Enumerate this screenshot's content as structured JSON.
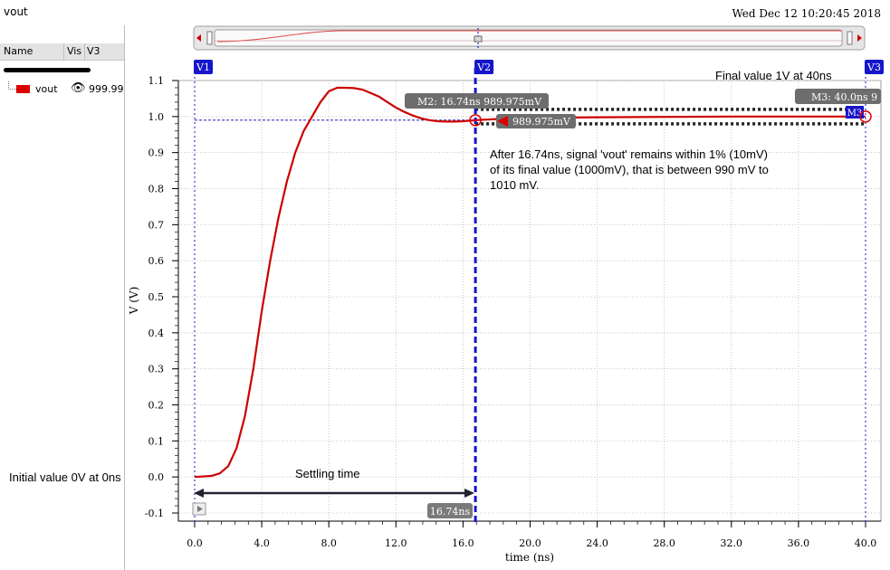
{
  "window": {
    "title": "vout",
    "datetime": "Wed Dec 12 10:20:45 2018"
  },
  "signal_table": {
    "columns": [
      "Name",
      "Vis",
      "V3"
    ],
    "rows": [
      {
        "name": "vout",
        "color": "#dd0000",
        "visibility_icon": "eye-icon",
        "value": "999.99"
      }
    ]
  },
  "cursors": [
    {
      "label": "V1",
      "x_ns": 0
    },
    {
      "label": "V2",
      "x_ns": 16.74
    },
    {
      "label": "V3",
      "x_ns": 40
    }
  ],
  "markers": {
    "m2": "M2: 16.74ns 989.975mV",
    "m2_value": "989.975mV",
    "m3": "M3: 40.0ns 9",
    "m3_tag": "M3",
    "delta": "16.74ns"
  },
  "annotations": {
    "final_value": "Final value 1V at 40ns",
    "settling_note": [
      "After 16.74ns, signal 'vout' remains within 1% (10mV)",
      "of its final value (1000mV), that is between 990 mV to",
      "1010 mV."
    ],
    "settling_time": "Settling time",
    "initial_value": "Initial value 0V at 0ns"
  },
  "chart_data": {
    "type": "line",
    "xlabel": "time (ns)",
    "ylabel": "V (V)",
    "xlim": [
      0,
      40
    ],
    "ylim": [
      -0.1,
      1.1
    ],
    "x_ticks": [
      "0.0",
      "4.0",
      "8.0",
      "12.0",
      "16.0",
      "20.0",
      "24.0",
      "28.0",
      "32.0",
      "36.0",
      "40.0"
    ],
    "y_ticks": [
      "1.1",
      "1.0",
      "0.9",
      "0.8",
      "0.7",
      "0.6",
      "0.5",
      "0.4",
      "0.3",
      "0.2",
      "0.1",
      "0.0",
      "-0.1"
    ],
    "grid": true,
    "series": [
      {
        "name": "vout",
        "color": "#cc0000",
        "x": [
          0,
          1,
          1.5,
          2,
          2.5,
          3,
          3.5,
          4,
          4.5,
          5,
          5.5,
          6,
          6.5,
          7,
          7.5,
          8,
          8.5,
          9,
          9.5,
          10,
          10.5,
          11,
          11.5,
          12,
          12.5,
          13,
          13.5,
          14,
          14.5,
          15,
          15.5,
          16,
          16.74,
          18,
          20,
          24,
          28,
          32,
          36,
          40
        ],
        "y": [
          0,
          0.003,
          0.01,
          0.03,
          0.08,
          0.17,
          0.3,
          0.46,
          0.6,
          0.72,
          0.82,
          0.9,
          0.96,
          1.0,
          1.04,
          1.07,
          1.08,
          1.08,
          1.079,
          1.075,
          1.065,
          1.055,
          1.04,
          1.025,
          1.013,
          1.003,
          0.995,
          0.99,
          0.987,
          0.986,
          0.986,
          0.987,
          0.99,
          0.993,
          0.996,
          0.998,
          0.999,
          1.0,
          1.0,
          1.0
        ]
      }
    ],
    "tolerance_band": [
      0.99,
      1.01
    ],
    "reference_level": 0.99
  }
}
